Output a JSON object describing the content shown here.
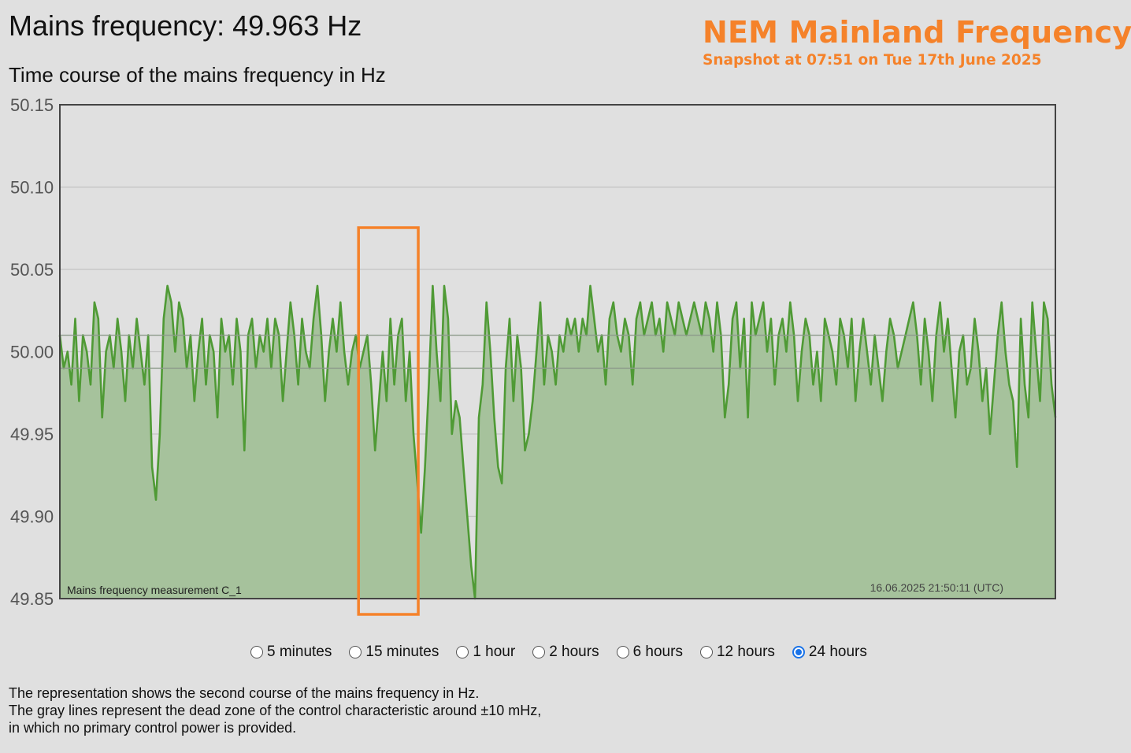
{
  "header": {
    "title": "Mains frequency: 49.963 Hz",
    "subtitle": "Time course of the mains frequency in Hz"
  },
  "brand": {
    "title": "NEM Mainland Frequency",
    "snapshot": "Snapshot at 07:51 on Tue 17th June 2025",
    "color": "#f5822a"
  },
  "chart_data": {
    "type": "area",
    "title": "",
    "xlabel": "",
    "ylabel": "",
    "ylim": [
      49.85,
      50.15
    ],
    "yticks": [
      "50.15",
      "50.10",
      "50.05",
      "50.00",
      "49.95",
      "49.90",
      "49.85"
    ],
    "ytick_values": [
      50.15,
      50.1,
      50.05,
      50.0,
      49.95,
      49.9,
      49.85
    ],
    "deadzone": [
      49.99,
      50.01
    ],
    "grid": true,
    "line_color": "#4f9a35",
    "fill_color": "#a6c29c",
    "series_label": "Mains frequency measurement C_1",
    "timestamp": "16.06.2025 21:50:11 (UTC)",
    "x_range": [
      0,
      1
    ],
    "highlight_x_range": [
      0.3,
      0.36
    ],
    "highlight_color": "#f5822a",
    "series": [
      {
        "name": "Mains frequency measurement C_1",
        "values": [
          50.01,
          49.99,
          50.0,
          49.98,
          50.02,
          49.97,
          50.01,
          50.0,
          49.98,
          50.03,
          50.02,
          49.96,
          50.0,
          50.01,
          49.99,
          50.02,
          50.0,
          49.97,
          50.01,
          49.99,
          50.02,
          50.0,
          49.98,
          50.01,
          49.93,
          49.91,
          49.95,
          50.02,
          50.04,
          50.03,
          50.0,
          50.03,
          50.02,
          49.99,
          50.01,
          49.97,
          50.0,
          50.02,
          49.98,
          50.01,
          50.0,
          49.96,
          50.02,
          50.0,
          50.01,
          49.98,
          50.02,
          50.0,
          49.94,
          50.01,
          50.02,
          49.99,
          50.01,
          50.0,
          50.02,
          49.99,
          50.02,
          50.01,
          49.97,
          50.0,
          50.03,
          50.01,
          49.98,
          50.02,
          50.0,
          49.99,
          50.02,
          50.04,
          50.01,
          49.97,
          50.0,
          50.02,
          50.0,
          50.03,
          50.0,
          49.98,
          50.0,
          50.01,
          49.99,
          50.0,
          50.01,
          49.98,
          49.94,
          49.97,
          50.0,
          49.97,
          50.02,
          49.98,
          50.01,
          50.02,
          49.97,
          50.0,
          49.95,
          49.92,
          49.89,
          49.93,
          49.98,
          50.04,
          50.0,
          49.97,
          50.04,
          50.02,
          49.95,
          49.97,
          49.96,
          49.93,
          49.9,
          49.87,
          49.85,
          49.96,
          49.98,
          50.03,
          50.0,
          49.96,
          49.93,
          49.92,
          49.99,
          50.02,
          49.97,
          50.01,
          49.99,
          49.94,
          49.95,
          49.97,
          50.0,
          50.03,
          49.98,
          50.01,
          50.0,
          49.98,
          50.01,
          50.0,
          50.02,
          50.01,
          50.02,
          50.0,
          50.02,
          50.01,
          50.04,
          50.02,
          50.0,
          50.01,
          49.98,
          50.02,
          50.03,
          50.01,
          50.0,
          50.02,
          50.01,
          49.98,
          50.02,
          50.03,
          50.01,
          50.02,
          50.03,
          50.01,
          50.02,
          50.0,
          50.03,
          50.02,
          50.01,
          50.03,
          50.02,
          50.01,
          50.02,
          50.03,
          50.02,
          50.01,
          50.03,
          50.02,
          50.0,
          50.03,
          50.01,
          49.96,
          49.98,
          50.02,
          50.03,
          49.99,
          50.02,
          49.96,
          50.03,
          50.01,
          50.02,
          50.03,
          50.0,
          50.02,
          49.98,
          50.01,
          50.02,
          50.0,
          50.03,
          50.01,
          49.97,
          50.0,
          50.02,
          50.01,
          49.98,
          50.0,
          49.97,
          50.02,
          50.01,
          50.0,
          49.98,
          50.02,
          50.01,
          49.99,
          50.02,
          49.97,
          50.0,
          50.02,
          50.0,
          49.98,
          50.01,
          49.99,
          49.97,
          50.0,
          50.02,
          50.01,
          49.99,
          50.0,
          50.01,
          50.02,
          50.03,
          50.01,
          49.98,
          50.02,
          50.0,
          49.97,
          50.01,
          50.03,
          50.0,
          50.02,
          49.99,
          49.96,
          50.0,
          50.01,
          49.98,
          49.99,
          50.02,
          50.0,
          49.97,
          49.99,
          49.95,
          49.98,
          50.01,
          50.03,
          50.0,
          49.98,
          49.97,
          49.93,
          50.02,
          49.98,
          49.96,
          50.03,
          50.0,
          49.97,
          50.03,
          50.02,
          49.98,
          49.96
        ]
      }
    ]
  },
  "range_options": {
    "items": [
      {
        "label": "5 minutes",
        "checked": false
      },
      {
        "label": "15 minutes",
        "checked": false
      },
      {
        "label": "1 hour",
        "checked": false
      },
      {
        "label": "2 hours",
        "checked": false
      },
      {
        "label": "6 hours",
        "checked": false
      },
      {
        "label": "12 hours",
        "checked": false
      },
      {
        "label": "24 hours",
        "checked": true
      }
    ],
    "accent": "#1a73e8"
  },
  "description": {
    "line1": "The representation shows the second course of the mains frequency in Hz.",
    "line2": "The gray lines represent the dead zone of the control characteristic around ±10 mHz,",
    "line3": "in which no primary control power is provided."
  }
}
